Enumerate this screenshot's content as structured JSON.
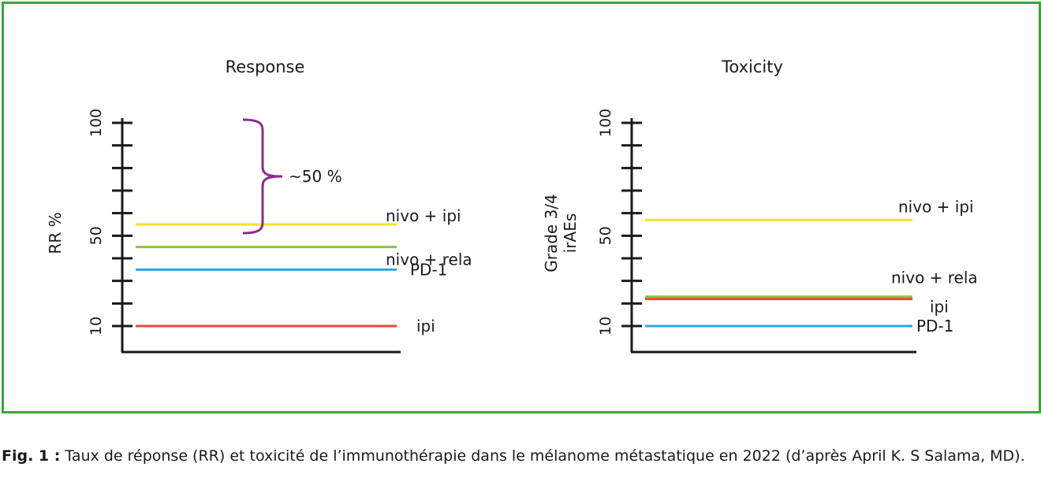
{
  "chart_data": [
    {
      "type": "line",
      "title": "Response",
      "ylabel": "RR %",
      "yticks": [
        "100",
        "50",
        "10"
      ],
      "ylim": [
        0,
        100
      ],
      "series": [
        {
          "name": "nivo + ipi",
          "value": 55,
          "color": "#f2e12e"
        },
        {
          "name": "nivo + rela",
          "value": 45,
          "color": "#8cc63f"
        },
        {
          "name": "PD-1",
          "value": 35,
          "color": "#29a8df"
        },
        {
          "name": "ipi",
          "value": 10,
          "color": "#e8493a"
        }
      ],
      "annotation": {
        "text": "~50 %",
        "from": 55,
        "to": 100,
        "color": "#92278f"
      }
    },
    {
      "type": "line",
      "title": "Toxicity",
      "ylabel": "Grade 3/4 irAEs",
      "yticks": [
        "100",
        "50",
        "10"
      ],
      "ylim": [
        0,
        100
      ],
      "series": [
        {
          "name": "nivo + ipi",
          "value": 57,
          "color": "#f2e12e"
        },
        {
          "name": "nivo + rela",
          "value": 23,
          "color": "#8cc63f"
        },
        {
          "name": "ipi",
          "value": 22,
          "color": "#e8493a"
        },
        {
          "name": "PD-1",
          "value": 10,
          "color": "#29a8df"
        }
      ]
    }
  ],
  "caption": {
    "label": "Fig. 1 :",
    "text": " Taux de réponse (RR) et toxicité de l’immunothérapie dans le mélanome métastatique en 2022 (d’après April K. S Salama, MD)."
  }
}
